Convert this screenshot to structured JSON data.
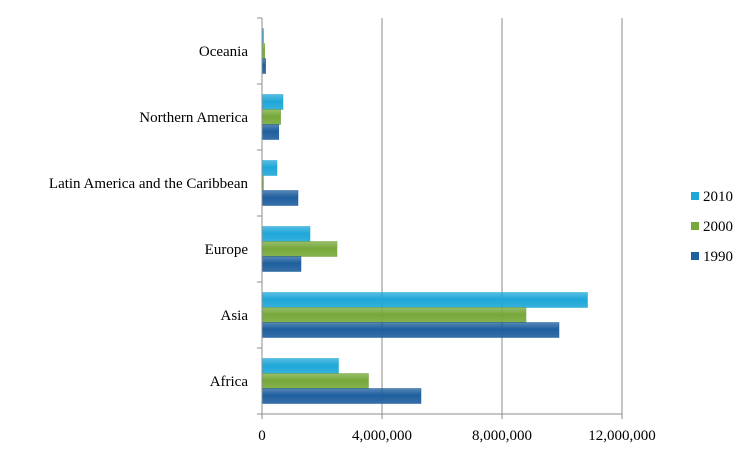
{
  "chart_data": {
    "type": "bar",
    "orientation": "horizontal",
    "categories": [
      "Africa",
      "Asia",
      "Europe",
      "Latin America and the Caribbean",
      "Northern America",
      "Oceania"
    ],
    "series": [
      {
        "name": "2010",
        "color": "#1fa7d9",
        "values": [
          2550000,
          10850000,
          1600000,
          500000,
          700000,
          50000
        ]
      },
      {
        "name": "2000",
        "color": "#77a83a",
        "values": [
          3550000,
          8800000,
          2500000,
          50000,
          620000,
          90000
        ]
      },
      {
        "name": "1990",
        "color": "#1f5f9e",
        "values": [
          5300000,
          9900000,
          1300000,
          1200000,
          560000,
          120000
        ]
      }
    ],
    "xlim": [
      0,
      12000000
    ],
    "xticks": [
      0,
      4000000,
      8000000,
      12000000
    ],
    "xtick_labels": [
      "0",
      "4,000,000",
      "8,000,000",
      "12,000,000"
    ],
    "grid": "vertical",
    "legend_position": "right",
    "title": "",
    "xlabel": "",
    "ylabel": ""
  }
}
